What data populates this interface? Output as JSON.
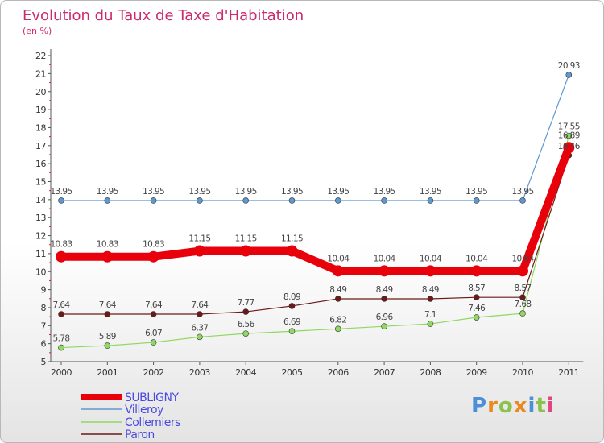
{
  "colors": {
    "SUBLIGNY": "#e8000b",
    "Villeroy": "#5f98cf",
    "Collemiers": "#8fd861",
    "Paron": "#6b1a1a"
  },
  "logo": {
    "text": "Proxiti"
  },
  "chart_data": {
    "type": "line",
    "title": "Evolution du Taux de Taxe d'Habitation",
    "subtitle": "(en %)",
    "xlabel": "",
    "ylabel": "",
    "ylim": [
      5,
      22
    ],
    "grid": false,
    "legend_position": "bottom-left",
    "x": [
      "2000",
      "2001",
      "2002",
      "2003",
      "2004",
      "2005",
      "2006",
      "2007",
      "2008",
      "2009",
      "2010",
      "2011"
    ],
    "yticks": [
      "5",
      "6",
      "7",
      "8",
      "9",
      "10",
      "11",
      "12",
      "13",
      "14",
      "15",
      "16",
      "17",
      "18",
      "19",
      "20",
      "21",
      "22"
    ],
    "series": [
      {
        "name": "SUBLIGNY",
        "values": [
          10.83,
          10.83,
          10.83,
          11.15,
          11.15,
          11.15,
          10.04,
          10.04,
          10.04,
          10.04,
          10.04,
          16.89
        ],
        "labels": [
          "10.83",
          "10.83",
          "10.83",
          "11.15",
          "11.15",
          "11.15",
          "10.04",
          "10.04",
          "10.04",
          "10.04",
          "10.04",
          "16.89"
        ]
      },
      {
        "name": "Villeroy",
        "values": [
          13.95,
          13.95,
          13.95,
          13.95,
          13.95,
          13.95,
          13.95,
          13.95,
          13.95,
          13.95,
          13.95,
          20.93
        ],
        "labels": [
          "13.95",
          "13.95",
          "13.95",
          "13.95",
          "13.95",
          "13.95",
          "13.95",
          "13.95",
          "13.95",
          "13.95",
          "13.95",
          "20.93"
        ]
      },
      {
        "name": "Collemiers",
        "values": [
          5.78,
          5.89,
          6.07,
          6.37,
          6.56,
          6.69,
          6.82,
          6.96,
          7.1,
          7.46,
          7.68,
          17.55
        ],
        "labels": [
          "5.78",
          "5.89",
          "6.07",
          "6.37",
          "6.56",
          "6.69",
          "6.82",
          "6.96",
          "7.1",
          "7.46",
          "7.68",
          "17.55"
        ]
      },
      {
        "name": "Paron",
        "values": [
          7.64,
          7.64,
          7.64,
          7.64,
          7.77,
          8.09,
          8.49,
          8.49,
          8.49,
          8.57,
          8.57,
          16.46
        ],
        "labels": [
          "7.64",
          "7.64",
          "7.64",
          "7.64",
          "7.77",
          "8.09",
          "8.49",
          "8.49",
          "8.49",
          "8.57",
          "8.57",
          "16.46"
        ]
      }
    ]
  }
}
